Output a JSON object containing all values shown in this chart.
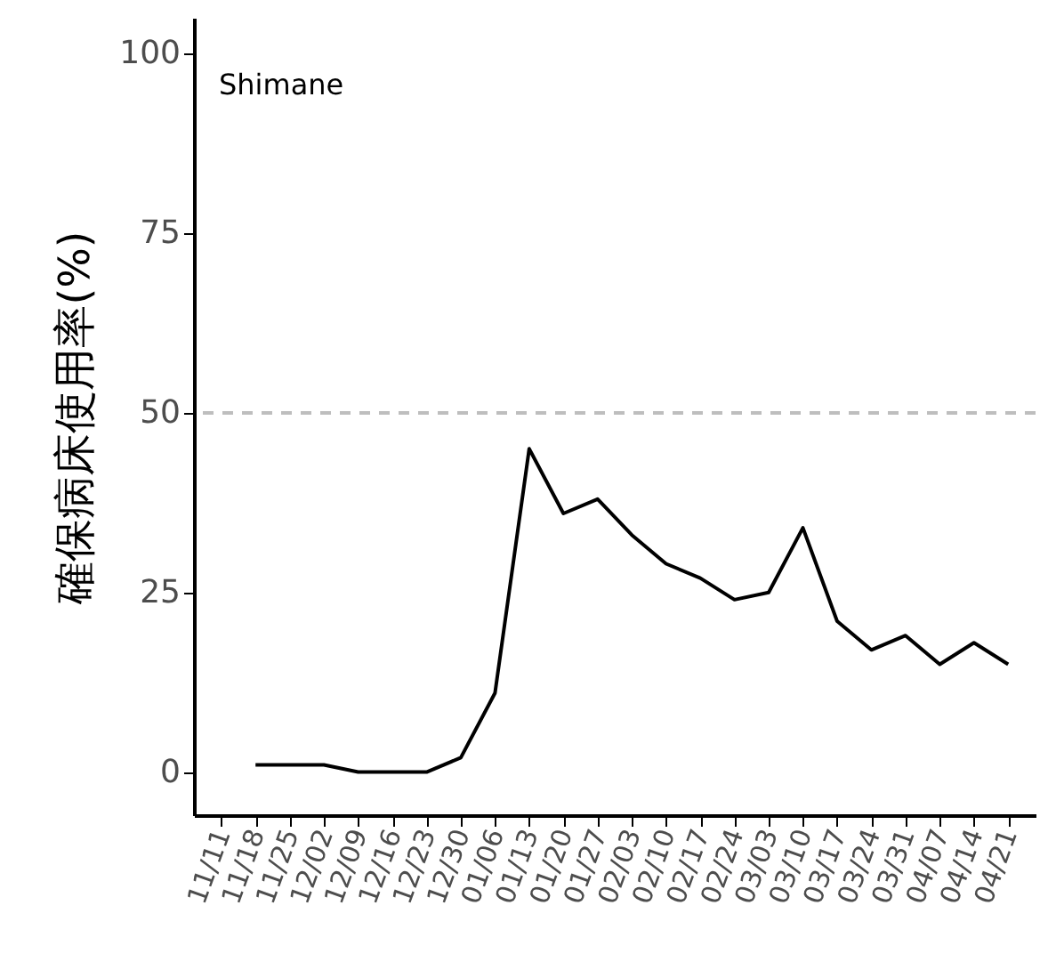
{
  "chart_data": {
    "type": "line",
    "ylabel": "確保病床使用率(%)",
    "annotations": [
      "Shimane"
    ],
    "categories": [
      "11/11",
      "11/18",
      "11/25",
      "12/02",
      "12/09",
      "12/16",
      "12/23",
      "12/30",
      "01/06",
      "01/13",
      "01/20",
      "01/27",
      "02/03",
      "02/10",
      "02/17",
      "02/24",
      "03/03",
      "03/10",
      "03/17",
      "03/24",
      "03/31",
      "04/07",
      "04/14",
      "04/21"
    ],
    "series": [
      {
        "color": "#000000",
        "values": [
          null,
          1,
          1,
          1,
          0,
          0,
          0,
          2,
          11,
          45,
          36,
          38,
          33,
          29,
          27,
          24,
          25,
          34,
          21,
          17,
          19,
          15,
          18,
          15
        ]
      }
    ],
    "ylim": [
      -6,
      105
    ],
    "yticks": [
      0,
      25,
      50,
      75,
      100
    ],
    "grid": false,
    "marker": "none",
    "line_style": "solid",
    "ref_lines": [
      {
        "axis": "y",
        "value": 50,
        "color": "#bebebe",
        "line_style": "dashed"
      }
    ]
  }
}
